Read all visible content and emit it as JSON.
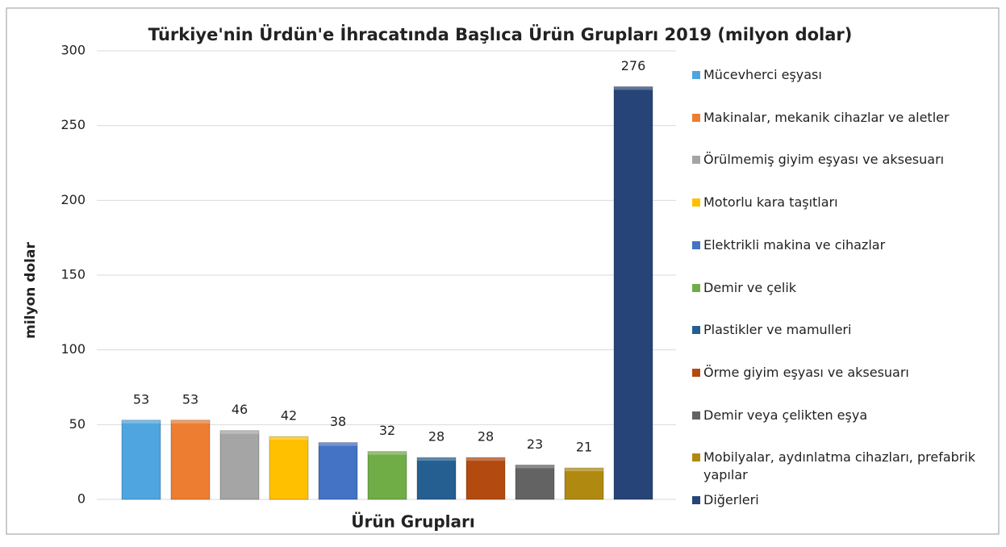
{
  "chart_data": {
    "type": "bar",
    "title": "Türkiye'nin Ürdün'e  İhracatında Başlıca Ürün Grupları 2019 (milyon dolar)",
    "xlabel": "Ürün Grupları",
    "ylabel": "milyon dolar",
    "ylim": [
      0,
      300
    ],
    "yticks": [
      0,
      50,
      100,
      150,
      200,
      250,
      300
    ],
    "grid": true,
    "legend": "right",
    "series": [
      {
        "name": "Mücevherci eşyası",
        "color": "#4ea5e0",
        "values": [
          53
        ]
      },
      {
        "name": "Makinalar, mekanik cihazlar ve aletler",
        "color": "#ed7d31",
        "values": [
          53
        ]
      },
      {
        "name": "Örülmemiş giyim eşyası ve aksesuarı",
        "color": "#a5a5a5",
        "values": [
          46
        ]
      },
      {
        "name": "Motorlu kara taşıtları",
        "color": "#ffc000",
        "values": [
          42
        ]
      },
      {
        "name": "Elektrikli makina ve cihazlar",
        "color": "#4472c4",
        "values": [
          38
        ]
      },
      {
        "name": "Demir ve çelik",
        "color": "#70ad47",
        "values": [
          32
        ]
      },
      {
        "name": "Plastikler ve mamulleri",
        "color": "#255e91",
        "values": [
          28
        ]
      },
      {
        "name": "Örme giyim eşyası ve aksesuarı",
        "color": "#b34a10",
        "values": [
          28
        ]
      },
      {
        "name": "Demir veya çelikten eşya",
        "color": "#636363",
        "values": [
          23
        ]
      },
      {
        "name": "Mobilyalar, aydınlatma cihazları, prefabrik yapılar",
        "color": "#b08a10",
        "values": [
          21
        ]
      },
      {
        "name": "Diğerleri",
        "color": "#264478",
        "values": [
          276
        ]
      }
    ]
  }
}
